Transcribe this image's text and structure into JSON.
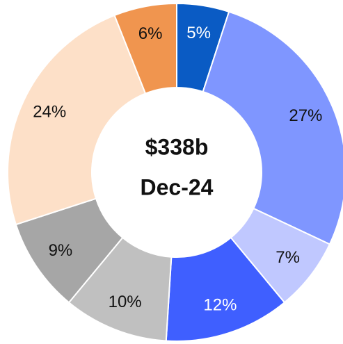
{
  "chart_data": {
    "type": "donut",
    "values": [
      5,
      27,
      7,
      12,
      10,
      9,
      24,
      6
    ],
    "value_labels": [
      "5%",
      "27%",
      "7%",
      "12%",
      "10%",
      "9%",
      "24%",
      "6%"
    ],
    "colors": [
      "#0a5bc4",
      "#7f96ff",
      "#c0c8ff",
      "#3f5fff",
      "#c0c0c0",
      "#a6a6a6",
      "#fde0c8",
      "#f0954f"
    ],
    "label_colors": [
      "#ffffff",
      "#111111",
      "#111111",
      "#ffffff",
      "#111111",
      "#111111",
      "#111111",
      "#111111"
    ],
    "center_text": [
      "$338b",
      "Dec-24"
    ]
  }
}
